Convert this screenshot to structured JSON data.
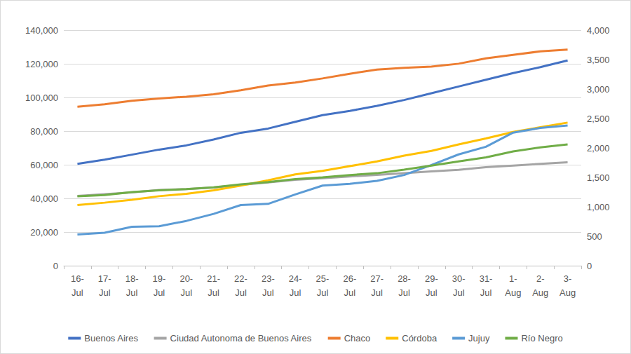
{
  "chart_data": {
    "type": "line",
    "categories": [
      "16-Jul",
      "17-Jul",
      "18-Jul",
      "19-Jul",
      "20-Jul",
      "21-Jul",
      "22-Jul",
      "23-Jul",
      "24-Jul",
      "25-Jul",
      "26-Jul",
      "27-Jul",
      "28-Jul",
      "29-Jul",
      "30-Jul",
      "31-Jul",
      "1-Aug",
      "2-Aug",
      "3-Aug"
    ],
    "series": [
      {
        "name": "Buenos Aires",
        "color": "#4472c4",
        "values": [
          60500,
          63000,
          66000,
          69000,
          71500,
          75000,
          79000,
          81500,
          85500,
          89500,
          92000,
          95000,
          98500,
          102500,
          106500,
          110500,
          114500,
          118000,
          122000
        ]
      },
      {
        "name": "Ciudad Autonoma de Buenos Aires",
        "color": "#a5a5a5",
        "values": [
          41500,
          42500,
          43500,
          45000,
          45500,
          46500,
          48000,
          49500,
          51000,
          52000,
          53000,
          54000,
          55000,
          56000,
          57000,
          58500,
          59500,
          60500,
          61500
        ]
      },
      {
        "name": "Chaco",
        "color": "#ed7d31",
        "axis": "y2",
        "values": [
          2700,
          2740,
          2800,
          2840,
          2870,
          2910,
          2980,
          3060,
          3110,
          3180,
          3260,
          3330,
          3360,
          3380,
          3430,
          3520,
          3580,
          3640,
          3670
        ]
      },
      {
        "name": "Córdoba",
        "color": "#ffc000",
        "axis": "y2",
        "values": [
          1030,
          1070,
          1120,
          1180,
          1220,
          1280,
          1360,
          1450,
          1550,
          1610,
          1690,
          1770,
          1870,
          1950,
          2060,
          2160,
          2270,
          2350,
          2430
        ]
      },
      {
        "name": "Jujuy",
        "color": "#5b9bd5",
        "axis": "y2",
        "values": [
          530,
          560,
          660,
          670,
          760,
          880,
          1030,
          1050,
          1210,
          1360,
          1390,
          1440,
          1540,
          1710,
          1890,
          2020,
          2260,
          2340,
          2380
        ]
      },
      {
        "name": "Río Negro",
        "color": "#70ad47",
        "axis": "y2",
        "values": [
          1180,
          1200,
          1250,
          1280,
          1300,
          1330,
          1380,
          1420,
          1470,
          1500,
          1540,
          1570,
          1630,
          1700,
          1770,
          1840,
          1940,
          2010,
          2060
        ]
      }
    ],
    "ylim": [
      0,
      140000
    ],
    "yticks": [
      0,
      20000,
      40000,
      60000,
      80000,
      100000,
      120000,
      140000
    ],
    "y2lim": [
      0,
      4000
    ],
    "y2ticks": [
      0,
      500,
      1000,
      1500,
      2000,
      2500,
      3000,
      3500,
      4000
    ],
    "grid": true,
    "legend": "bottom",
    "marker": "none",
    "line_style": "solid"
  }
}
